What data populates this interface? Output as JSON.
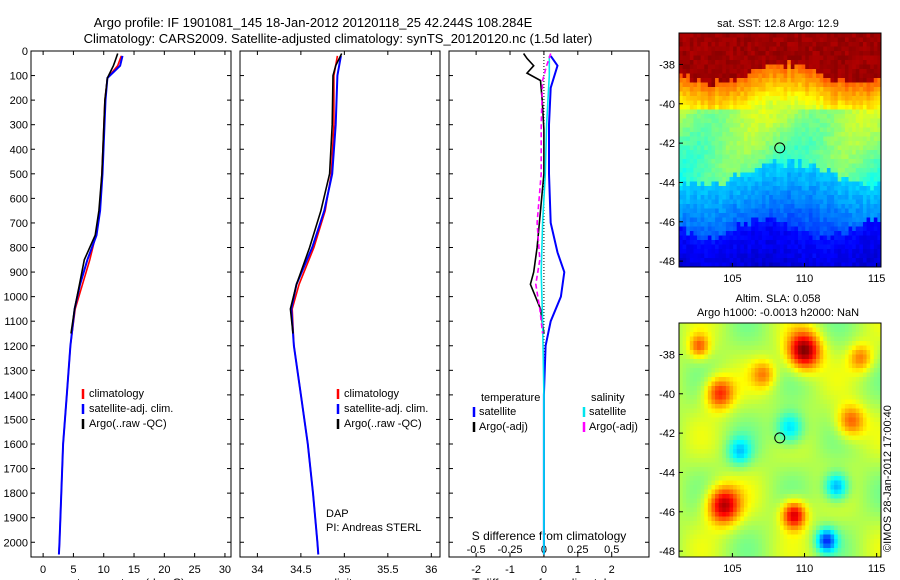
{
  "header": {
    "line1": "Argo profile: IF 1901081_145 18-Jan-2012 20120118_25 42.244S 108.284E",
    "line2": "Climatology: CARS2009. Satellite-adjusted climatology: synTS_20120120.nc (1.5d later)"
  },
  "colors": {
    "clim": "#ff0000",
    "sat": "#0000ff",
    "argo": "#000000",
    "sat_s": "#00e5ee",
    "argo_s": "#ff00ff"
  },
  "chart_data": [
    {
      "type": "line",
      "name": "temperature",
      "xlabel": "temperature (deg C)",
      "ylabel": "",
      "xlim": [
        -2,
        31
      ],
      "ylim": [
        2060,
        0
      ],
      "xticks": [
        0,
        5,
        10,
        15,
        20,
        25,
        30
      ],
      "yticks": [
        0,
        100,
        200,
        300,
        400,
        500,
        600,
        700,
        800,
        900,
        1000,
        1100,
        1200,
        1300,
        1400,
        1500,
        1600,
        1700,
        1800,
        1900,
        2000
      ],
      "legend": [
        "climatology",
        "satellite-adj. clim.",
        "Argo(..raw -QC)"
      ],
      "legend_location": "lower-center",
      "series": [
        {
          "name": "climatology",
          "color": "#ff0000",
          "points": [
            [
              12.9,
              20
            ],
            [
              12.3,
              60
            ],
            [
              10.6,
              110
            ],
            [
              10.2,
              200
            ],
            [
              10.0,
              320
            ],
            [
              9.7,
              500
            ],
            [
              9.3,
              650
            ],
            [
              8.7,
              750
            ],
            [
              7.7,
              850
            ],
            [
              6.5,
              950
            ],
            [
              5.3,
              1050
            ],
            [
              4.5,
              1200
            ],
            [
              3.9,
              1400
            ],
            [
              3.3,
              1600
            ],
            [
              3.0,
              1800
            ],
            [
              2.7,
              2000
            ],
            [
              2.6,
              2050
            ]
          ]
        },
        {
          "name": "satellite-adj. clim.",
          "color": "#0000ff",
          "points": [
            [
              13.1,
              20
            ],
            [
              12.7,
              60
            ],
            [
              10.6,
              110
            ],
            [
              10.3,
              200
            ],
            [
              10.1,
              320
            ],
            [
              9.8,
              500
            ],
            [
              9.4,
              650
            ],
            [
              8.8,
              750
            ],
            [
              7.3,
              850
            ],
            [
              6.1,
              950
            ],
            [
              5.2,
              1050
            ],
            [
              4.5,
              1200
            ],
            [
              3.9,
              1400
            ],
            [
              3.3,
              1600
            ],
            [
              3.0,
              1800
            ],
            [
              2.7,
              2000
            ],
            [
              2.6,
              2050
            ]
          ]
        },
        {
          "name": "Argo(..raw -QC)",
          "color": "#000000",
          "points": [
            [
              12.3,
              10
            ],
            [
              11.9,
              40
            ],
            [
              11.6,
              60
            ],
            [
              10.6,
              110
            ],
            [
              10.2,
              200
            ],
            [
              10.0,
              320
            ],
            [
              9.7,
              500
            ],
            [
              9.2,
              650
            ],
            [
              8.6,
              750
            ],
            [
              6.8,
              850
            ],
            [
              6.0,
              950
            ],
            [
              5.2,
              1050
            ],
            [
              4.6,
              1150
            ]
          ]
        }
      ]
    },
    {
      "type": "line",
      "name": "salinity",
      "xlabel": "salinity",
      "ylabel": "",
      "xlim": [
        33.8,
        36.1
      ],
      "ylim": [
        2060,
        0
      ],
      "xticks": [
        34,
        34.5,
        35,
        35.5,
        36
      ],
      "legend": [
        "climatology",
        "satellite-adj. clim.",
        "Argo(..raw -QC)"
      ],
      "legend_location": "lower-right",
      "annotations": [
        "DAP",
        "PI: Andreas STERL"
      ],
      "series": [
        {
          "name": "climatology",
          "color": "#ff0000",
          "points": [
            [
              34.92,
              20
            ],
            [
              34.88,
              100
            ],
            [
              34.88,
              300
            ],
            [
              34.85,
              500
            ],
            [
              34.78,
              650
            ],
            [
              34.65,
              800
            ],
            [
              34.48,
              950
            ],
            [
              34.4,
              1050
            ],
            [
              34.42,
              1200
            ],
            [
              34.5,
              1400
            ],
            [
              34.58,
              1600
            ],
            [
              34.64,
              1800
            ],
            [
              34.69,
              2000
            ],
            [
              34.7,
              2050
            ]
          ]
        },
        {
          "name": "satellite-adj. clim.",
          "color": "#0000ff",
          "points": [
            [
              34.96,
              20
            ],
            [
              34.92,
              100
            ],
            [
              34.9,
              300
            ],
            [
              34.86,
              500
            ],
            [
              34.77,
              650
            ],
            [
              34.63,
              800
            ],
            [
              34.45,
              950
            ],
            [
              34.39,
              1050
            ],
            [
              34.42,
              1200
            ],
            [
              34.5,
              1400
            ],
            [
              34.58,
              1600
            ],
            [
              34.64,
              1800
            ],
            [
              34.69,
              2000
            ],
            [
              34.7,
              2050
            ]
          ]
        },
        {
          "name": "Argo(..raw -QC)",
          "color": "#000000",
          "points": [
            [
              34.97,
              10
            ],
            [
              34.9,
              60
            ],
            [
              34.87,
              100
            ],
            [
              34.86,
              300
            ],
            [
              34.83,
              500
            ],
            [
              34.73,
              650
            ],
            [
              34.6,
              800
            ],
            [
              34.45,
              950
            ],
            [
              34.38,
              1050
            ],
            [
              34.41,
              1150
            ]
          ]
        }
      ]
    },
    {
      "type": "line",
      "name": "difference",
      "xlabel": "T difference from climatology",
      "x2label": "S difference from climatology",
      "xlim": [
        -2.8,
        3.1
      ],
      "x2lim": [
        -0.7,
        0.775
      ],
      "ylim": [
        2060,
        0
      ],
      "xticks": [
        -2,
        -1,
        0,
        1,
        2
      ],
      "x2ticks": [
        -0.5,
        -0.25,
        0,
        0.25,
        0.5
      ],
      "x2ticklabels": [
        "-0.5",
        "-0.25",
        "0",
        "0.25",
        "0.5"
      ],
      "legend_groups": [
        {
          "title": "temperature",
          "items": [
            "satellite",
            "Argo(-adj)"
          ]
        },
        {
          "title": "salinity",
          "items": [
            "satellite",
            "Argo(-adj)"
          ]
        }
      ],
      "series": [
        {
          "name": "temperature satellite",
          "color": "#0000ff",
          "points": [
            [
              0.2,
              20
            ],
            [
              0.4,
              60
            ],
            [
              0.2,
              150
            ],
            [
              0.15,
              300
            ],
            [
              0.15,
              500
            ],
            [
              0.2,
              700
            ],
            [
              0.4,
              820
            ],
            [
              0.6,
              900
            ],
            [
              0.5,
              1000
            ],
            [
              0.2,
              1100
            ],
            [
              0.05,
              1200
            ],
            [
              0.0,
              1400
            ],
            [
              0.0,
              1600
            ],
            [
              0.0,
              1800
            ],
            [
              0.0,
              2050
            ]
          ]
        },
        {
          "name": "temperature Argo(-adj)",
          "color": "#000000",
          "points": [
            [
              -0.6,
              10
            ],
            [
              -0.5,
              30
            ],
            [
              -0.3,
              60
            ],
            [
              -0.5,
              90
            ],
            [
              -0.1,
              120
            ],
            [
              -0.05,
              200
            ],
            [
              0.0,
              320
            ],
            [
              0.0,
              500
            ],
            [
              -0.1,
              650
            ],
            [
              -0.2,
              800
            ],
            [
              -0.3,
              900
            ],
            [
              -0.4,
              950
            ],
            [
              -0.1,
              1050
            ],
            [
              0.0,
              1150
            ]
          ]
        },
        {
          "name": "salinity satellite",
          "color": "#00e5ee",
          "points": [
            [
              0.04,
              20
            ],
            [
              0.04,
              100
            ],
            [
              0.02,
              300
            ],
            [
              0.01,
              500
            ],
            [
              -0.01,
              700
            ],
            [
              -0.02,
              900
            ],
            [
              -0.01,
              1100
            ],
            [
              0.0,
              1400
            ],
            [
              0.0,
              2050
            ]
          ]
        },
        {
          "name": "salinity Argo(-adj)",
          "color": "#ff00ff",
          "points": [
            [
              0.05,
              10
            ],
            [
              0.02,
              60
            ],
            [
              -0.01,
              120
            ],
            [
              -0.02,
              300
            ],
            [
              -0.02,
              500
            ],
            [
              -0.05,
              700
            ],
            [
              -0.03,
              850
            ],
            [
              -0.06,
              950
            ],
            [
              -0.03,
              1050
            ],
            [
              -0.01,
              1150
            ]
          ]
        }
      ]
    },
    {
      "type": "heatmap",
      "name": "sst-map",
      "title": "sat. SST: 12.8 Argo: 12.9",
      "xticks": [
        105,
        110,
        115
      ],
      "yticks": [
        -38,
        -40,
        -42,
        -44,
        -46,
        -48
      ],
      "xlim": [
        101.3,
        115.3
      ],
      "ylim": [
        -48.3,
        -36.4
      ],
      "marker": [
        108.284,
        -42.244
      ],
      "colormap": "jet"
    },
    {
      "type": "heatmap",
      "name": "sla-map",
      "title_line1": "Altim. SLA: 0.058",
      "title_line2": "Argo h1000: -0.0013 h2000: NaN",
      "xticks": [
        105,
        110,
        115
      ],
      "yticks": [
        -38,
        -40,
        -42,
        -44,
        -46,
        -48
      ],
      "xlim": [
        101.3,
        115.3
      ],
      "ylim": [
        -48.3,
        -36.4
      ],
      "marker": [
        108.284,
        -42.244
      ],
      "colormap": "jet",
      "side_label": "©IMOS 28-Jan-2012 17:00:40"
    }
  ]
}
